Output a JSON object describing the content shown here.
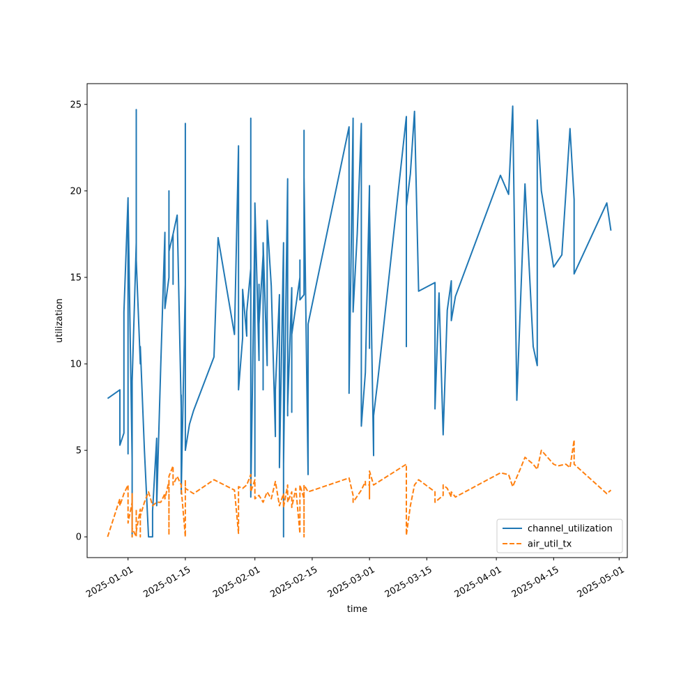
{
  "chart_data": {
    "type": "line",
    "title": "",
    "xlabel": "time",
    "ylabel": "utilization",
    "x_axis_type": "date",
    "xlim": [
      "2024-12-22",
      "2025-05-03"
    ],
    "ylim": [
      -1.2,
      26.2
    ],
    "x_ticks": [
      {
        "date": "2025-01-01",
        "label": "2025-01-01"
      },
      {
        "date": "2025-01-15",
        "label": "2025-01-15"
      },
      {
        "date": "2025-02-01",
        "label": "2025-02-01"
      },
      {
        "date": "2025-02-15",
        "label": "2025-02-15"
      },
      {
        "date": "2025-03-01",
        "label": "2025-03-01"
      },
      {
        "date": "2025-03-15",
        "label": "2025-03-15"
      },
      {
        "date": "2025-04-01",
        "label": "2025-04-01"
      },
      {
        "date": "2025-04-15",
        "label": "2025-04-15"
      },
      {
        "date": "2025-05-01",
        "label": "2025-05-01"
      }
    ],
    "y_ticks": [
      0,
      5,
      10,
      15,
      20,
      25
    ],
    "grid": false,
    "legend_position": "lower-right",
    "series": [
      {
        "name": "channel_utilization",
        "color": "#1f77b4",
        "style": "solid",
        "points": [
          [
            "2024-12-27",
            8.0
          ],
          [
            "2024-12-30",
            8.5
          ],
          [
            "2024-12-30",
            5.3
          ],
          [
            "2024-12-31",
            6.0
          ],
          [
            "2024-12-31",
            13.0
          ],
          [
            "2025-01-01",
            19.6
          ],
          [
            "2025-01-01",
            4.8
          ],
          [
            "2025-01-01",
            19.5
          ],
          [
            "2025-01-02",
            4.4
          ],
          [
            "2025-01-02",
            0.0
          ],
          [
            "2025-01-02",
            5.8
          ],
          [
            "2025-01-02",
            0.0
          ],
          [
            "2025-01-02",
            9.0
          ],
          [
            "2025-01-03",
            17.0
          ],
          [
            "2025-01-03",
            24.7
          ],
          [
            "2025-01-03",
            16.0
          ],
          [
            "2025-01-04",
            10.0
          ],
          [
            "2025-01-04",
            11.0
          ],
          [
            "2025-01-05",
            5.0
          ],
          [
            "2025-01-06",
            0.0
          ],
          [
            "2025-01-07",
            0.0
          ],
          [
            "2025-01-07",
            1.5
          ],
          [
            "2025-01-08",
            5.7
          ],
          [
            "2025-01-08",
            1.8
          ],
          [
            "2025-01-09",
            10.0
          ],
          [
            "2025-01-10",
            17.6
          ],
          [
            "2025-01-10",
            13.2
          ],
          [
            "2025-01-11",
            15.0
          ],
          [
            "2025-01-11",
            20.0
          ],
          [
            "2025-01-11",
            16.5
          ],
          [
            "2025-01-12",
            17.5
          ],
          [
            "2025-01-12",
            14.6
          ],
          [
            "2025-01-12",
            17.5
          ],
          [
            "2025-01-13",
            18.6
          ],
          [
            "2025-01-14",
            7.4
          ],
          [
            "2025-01-14",
            8.2
          ],
          [
            "2025-01-14",
            2.5
          ],
          [
            "2025-01-15",
            14.6
          ],
          [
            "2025-01-15",
            13.8
          ],
          [
            "2025-01-15",
            23.9
          ],
          [
            "2025-01-15",
            5.0
          ],
          [
            "2025-01-16",
            6.5
          ],
          [
            "2025-01-17",
            7.3
          ],
          [
            "2025-01-22",
            10.4
          ],
          [
            "2025-01-23",
            17.3
          ],
          [
            "2025-01-27",
            11.7
          ],
          [
            "2025-01-28",
            22.6
          ],
          [
            "2025-01-28",
            20.0
          ],
          [
            "2025-01-28",
            8.5
          ],
          [
            "2025-01-29",
            11.5
          ],
          [
            "2025-01-29",
            14.3
          ],
          [
            "2025-01-30",
            11.6
          ],
          [
            "2025-01-30",
            13.0
          ],
          [
            "2025-01-31",
            15.5
          ],
          [
            "2025-01-31",
            12.5
          ],
          [
            "2025-01-31",
            23.6
          ],
          [
            "2025-01-31",
            24.2
          ],
          [
            "2025-01-31",
            2.3
          ],
          [
            "2025-02-01",
            18.2
          ],
          [
            "2025-02-01",
            3.5
          ],
          [
            "2025-02-01",
            19.3
          ],
          [
            "2025-02-02",
            10.2
          ],
          [
            "2025-02-02",
            14.6
          ],
          [
            "2025-02-02",
            12.3
          ],
          [
            "2025-02-03",
            16.3
          ],
          [
            "2025-02-03",
            8.5
          ],
          [
            "2025-02-03",
            17.0
          ],
          [
            "2025-02-04",
            9.9
          ],
          [
            "2025-02-04",
            18.3
          ],
          [
            "2025-02-05",
            14.5
          ],
          [
            "2025-02-06",
            5.8
          ],
          [
            "2025-02-06",
            8.5
          ],
          [
            "2025-02-07",
            14.0
          ],
          [
            "2025-02-07",
            4.0
          ],
          [
            "2025-02-08",
            17.0
          ],
          [
            "2025-02-08",
            0.0
          ],
          [
            "2025-02-08",
            7.8
          ],
          [
            "2025-02-08",
            4.2
          ],
          [
            "2025-02-09",
            20.7
          ],
          [
            "2025-02-09",
            20.4
          ],
          [
            "2025-02-09",
            7.0
          ],
          [
            "2025-02-09",
            7.5
          ],
          [
            "2025-02-10",
            14.4
          ],
          [
            "2025-02-10",
            7.2
          ],
          [
            "2025-02-10",
            14.0
          ],
          [
            "2025-02-10",
            11.0
          ],
          [
            "2025-02-10",
            11.7
          ],
          [
            "2025-02-12",
            15.0
          ],
          [
            "2025-02-12",
            16.0
          ],
          [
            "2025-02-12",
            13.7
          ],
          [
            "2025-02-13",
            14.0
          ],
          [
            "2025-02-13",
            23.5
          ],
          [
            "2025-02-13",
            17.0
          ],
          [
            "2025-02-13",
            20.8
          ],
          [
            "2025-02-13",
            16.7
          ],
          [
            "2025-02-13",
            20.8
          ],
          [
            "2025-02-14",
            3.6
          ],
          [
            "2025-02-14",
            12.3
          ],
          [
            "2025-02-24",
            23.7
          ],
          [
            "2025-02-24",
            8.3
          ],
          [
            "2025-02-25",
            24.2
          ],
          [
            "2025-02-25",
            13.0
          ],
          [
            "2025-02-26",
            17.5
          ],
          [
            "2025-02-27",
            23.9
          ],
          [
            "2025-02-27",
            6.4
          ],
          [
            "2025-02-28",
            9.5
          ],
          [
            "2025-03-01",
            20.3
          ],
          [
            "2025-03-01",
            10.9
          ],
          [
            "2025-03-01",
            19.1
          ],
          [
            "2025-03-02",
            4.7
          ],
          [
            "2025-03-02",
            7.0
          ],
          [
            "2025-03-03",
            9.0
          ],
          [
            "2025-03-10",
            24.3
          ],
          [
            "2025-03-10",
            11.0
          ],
          [
            "2025-03-10",
            19.1
          ],
          [
            "2025-03-11",
            21.0
          ],
          [
            "2025-03-12",
            24.6
          ],
          [
            "2025-03-13",
            14.2
          ],
          [
            "2025-03-17",
            14.7
          ],
          [
            "2025-03-17",
            7.4
          ],
          [
            "2025-03-18",
            14.1
          ],
          [
            "2025-03-19",
            5.9
          ],
          [
            "2025-03-20",
            13.1
          ],
          [
            "2025-03-21",
            14.8
          ],
          [
            "2025-03-21",
            12.5
          ],
          [
            "2025-03-22",
            13.9
          ],
          [
            "2025-04-02",
            20.9
          ],
          [
            "2025-04-04",
            19.8
          ],
          [
            "2025-04-05",
            24.9
          ],
          [
            "2025-04-06",
            7.9
          ],
          [
            "2025-04-08",
            20.4
          ],
          [
            "2025-04-10",
            11.0
          ],
          [
            "2025-04-11",
            9.9
          ],
          [
            "2025-04-11",
            24.1
          ],
          [
            "2025-04-12",
            20.0
          ],
          [
            "2025-04-15",
            15.6
          ],
          [
            "2025-04-17",
            16.3
          ],
          [
            "2025-04-19",
            23.6
          ],
          [
            "2025-04-20",
            19.5
          ],
          [
            "2025-04-20",
            15.2
          ],
          [
            "2025-04-28",
            19.3
          ],
          [
            "2025-04-29",
            17.7
          ]
        ]
      },
      {
        "name": "air_util_tx",
        "color": "#ff7f0e",
        "style": "dashed",
        "points": [
          [
            "2024-12-27",
            0.0
          ],
          [
            "2024-12-30",
            2.2
          ],
          [
            "2024-12-30",
            1.8
          ],
          [
            "2024-12-31",
            2.5
          ],
          [
            "2025-01-01",
            3.0
          ],
          [
            "2025-01-01",
            0.8
          ],
          [
            "2025-01-02",
            2.0
          ],
          [
            "2025-01-02",
            0.0
          ],
          [
            "2025-01-02",
            2.5
          ],
          [
            "2025-01-02",
            0.5
          ],
          [
            "2025-01-03",
            0.0
          ],
          [
            "2025-01-03",
            1.6
          ],
          [
            "2025-01-03",
            0.3
          ],
          [
            "2025-01-04",
            1.6
          ],
          [
            "2025-01-04",
            0.0
          ],
          [
            "2025-01-04",
            1.2
          ],
          [
            "2025-01-05",
            2.0
          ],
          [
            "2025-01-06",
            2.6
          ],
          [
            "2025-01-07",
            1.8
          ],
          [
            "2025-01-08",
            2.0
          ],
          [
            "2025-01-09",
            2.0
          ],
          [
            "2025-01-10",
            2.5
          ],
          [
            "2025-01-10",
            2.2
          ],
          [
            "2025-01-11",
            3.2
          ],
          [
            "2025-01-11",
            3.0
          ],
          [
            "2025-01-11",
            0.1
          ],
          [
            "2025-01-11",
            3.5
          ],
          [
            "2025-01-12",
            4.1
          ],
          [
            "2025-01-12",
            3.0
          ],
          [
            "2025-01-13",
            3.5
          ],
          [
            "2025-01-14",
            3.0
          ],
          [
            "2025-01-14",
            2.8
          ],
          [
            "2025-01-15",
            0.0
          ],
          [
            "2025-01-15",
            3.3
          ],
          [
            "2025-01-15",
            2.8
          ],
          [
            "2025-01-17",
            2.5
          ],
          [
            "2025-01-22",
            3.3
          ],
          [
            "2025-01-27",
            2.7
          ],
          [
            "2025-01-28",
            0.2
          ],
          [
            "2025-01-28",
            2.9
          ],
          [
            "2025-01-29",
            2.8
          ],
          [
            "2025-01-30",
            3.0
          ],
          [
            "2025-01-31",
            3.6
          ],
          [
            "2025-01-31",
            2.6
          ],
          [
            "2025-02-01",
            3.3
          ],
          [
            "2025-02-01",
            2.2
          ],
          [
            "2025-02-02",
            2.4
          ],
          [
            "2025-02-03",
            2.0
          ],
          [
            "2025-02-04",
            2.6
          ],
          [
            "2025-02-05",
            2.2
          ],
          [
            "2025-02-06",
            3.2
          ],
          [
            "2025-02-07",
            1.8
          ],
          [
            "2025-02-08",
            2.5
          ],
          [
            "2025-02-08",
            1.7
          ],
          [
            "2025-02-09",
            3.0
          ],
          [
            "2025-02-09",
            2.0
          ],
          [
            "2025-02-10",
            2.6
          ],
          [
            "2025-02-10",
            1.7
          ],
          [
            "2025-02-11",
            2.8
          ],
          [
            "2025-02-12",
            0.2
          ],
          [
            "2025-02-12",
            3.0
          ],
          [
            "2025-02-13",
            2.2
          ],
          [
            "2025-02-13",
            3.0
          ],
          [
            "2025-02-13",
            0.0
          ],
          [
            "2025-02-13",
            3.0
          ],
          [
            "2025-02-14",
            2.6
          ],
          [
            "2025-02-24",
            3.4
          ],
          [
            "2025-02-25",
            2.4
          ],
          [
            "2025-02-25",
            2.0
          ],
          [
            "2025-02-27",
            2.7
          ],
          [
            "2025-02-28",
            3.2
          ],
          [
            "2025-02-28",
            3.0
          ],
          [
            "2025-03-01",
            3.0
          ],
          [
            "2025-03-01",
            2.2
          ],
          [
            "2025-03-01",
            3.8
          ],
          [
            "2025-03-02",
            3.0
          ],
          [
            "2025-03-10",
            4.2
          ],
          [
            "2025-03-10",
            0.1
          ],
          [
            "2025-03-11",
            1.8
          ],
          [
            "2025-03-12",
            3.0
          ],
          [
            "2025-03-13",
            3.3
          ],
          [
            "2025-03-17",
            2.6
          ],
          [
            "2025-03-17",
            2.0
          ],
          [
            "2025-03-19",
            2.4
          ],
          [
            "2025-03-19",
            3.0
          ],
          [
            "2025-03-20",
            2.8
          ],
          [
            "2025-03-21",
            2.3
          ],
          [
            "2025-03-21",
            2.6
          ],
          [
            "2025-03-22",
            2.3
          ],
          [
            "2025-04-02",
            3.7
          ],
          [
            "2025-04-04",
            3.6
          ],
          [
            "2025-04-05",
            2.9
          ],
          [
            "2025-04-07",
            4.0
          ],
          [
            "2025-04-08",
            4.6
          ],
          [
            "2025-04-10",
            4.2
          ],
          [
            "2025-04-11",
            3.9
          ],
          [
            "2025-04-12",
            5.0
          ],
          [
            "2025-04-15",
            4.2
          ],
          [
            "2025-04-16",
            4.1
          ],
          [
            "2025-04-18",
            4.2
          ],
          [
            "2025-04-19",
            4.0
          ],
          [
            "2025-04-20",
            5.6
          ],
          [
            "2025-04-20",
            4.2
          ],
          [
            "2025-04-28",
            2.5
          ],
          [
            "2025-04-29",
            2.7
          ]
        ]
      }
    ]
  }
}
